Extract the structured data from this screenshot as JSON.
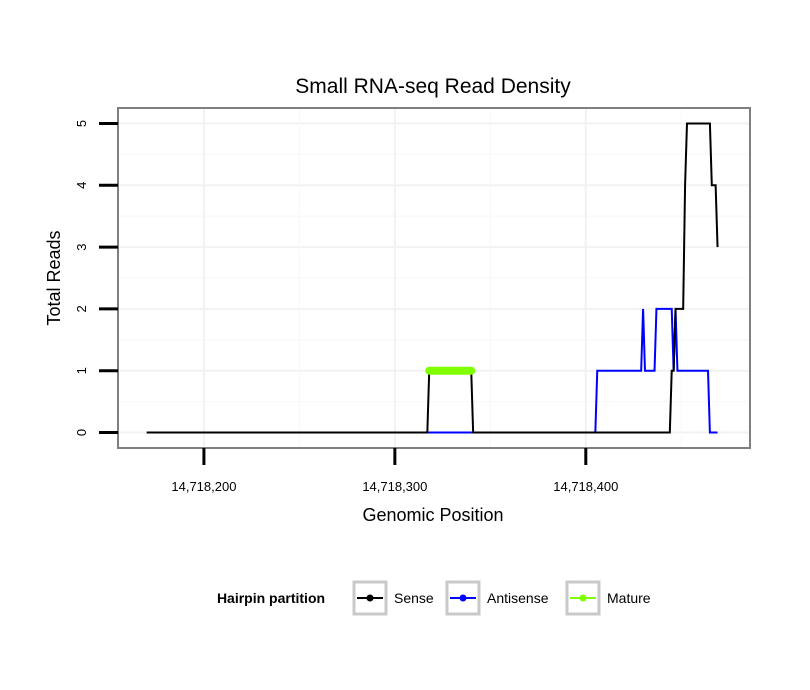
{
  "chart_data": {
    "type": "line",
    "title": "Small RNA-seq Read Density",
    "xlabel": "Genomic Position",
    "ylabel": "Total Reads",
    "xlim": [
      14718155,
      14718486
    ],
    "ylim": [
      -0.25,
      5.25
    ],
    "x_ticks": [
      14718200,
      14718300,
      14718400
    ],
    "x_tick_labels": [
      "14,718,200",
      "14,718,300",
      "14,718,400"
    ],
    "y_ticks": [
      0,
      1,
      2,
      3,
      4,
      5
    ],
    "y_tick_labels": [
      "0",
      "1",
      "2",
      "3",
      "4",
      "5"
    ],
    "grid": true,
    "legend": {
      "title": "Hairpin partition",
      "position": "bottom",
      "entries": [
        "Sense",
        "Antisense",
        "Mature"
      ]
    },
    "series": [
      {
        "name": "Sense",
        "color": "#000000",
        "points": [
          [
            14718170,
            0
          ],
          [
            14718317,
            0
          ],
          [
            14718318,
            1
          ],
          [
            14718340,
            1
          ],
          [
            14718341,
            0
          ],
          [
            14718444,
            0
          ],
          [
            14718445,
            1
          ],
          [
            14718446,
            1
          ],
          [
            14718447,
            2
          ],
          [
            14718451,
            2
          ],
          [
            14718452,
            4
          ],
          [
            14718453,
            5
          ],
          [
            14718465,
            5
          ],
          [
            14718466,
            4
          ],
          [
            14718468,
            4
          ],
          [
            14718469,
            3
          ]
        ]
      },
      {
        "name": "Antisense",
        "color": "#0000ff",
        "points": [
          [
            14718317,
            0
          ],
          [
            14718405,
            0
          ],
          [
            14718406,
            1
          ],
          [
            14718429,
            1
          ],
          [
            14718430,
            2
          ],
          [
            14718431,
            1
          ],
          [
            14718436,
            1
          ],
          [
            14718437,
            2
          ],
          [
            14718445,
            2
          ],
          [
            14718446,
            1
          ],
          [
            14718447,
            2
          ],
          [
            14718448,
            1
          ],
          [
            14718464,
            1
          ],
          [
            14718465,
            0
          ],
          [
            14718469,
            0
          ]
        ]
      },
      {
        "name": "Mature",
        "color": "#80ff00",
        "points": [
          [
            14718318,
            1
          ],
          [
            14718340,
            1
          ]
        ]
      }
    ]
  }
}
